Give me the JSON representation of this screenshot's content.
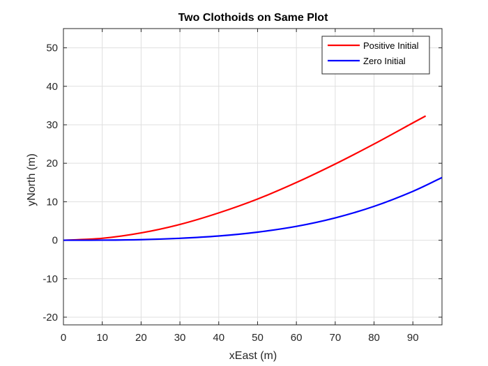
{
  "chart_data": {
    "type": "line",
    "title": "Two Clothoids on Same Plot",
    "xlabel": "xEast (m)",
    "ylabel": "yNorth (m)",
    "xlim": [
      0,
      97.5
    ],
    "ylim": [
      -22,
      55
    ],
    "xticks": [
      0,
      10,
      20,
      30,
      40,
      50,
      60,
      70,
      80,
      90
    ],
    "yticks": [
      -20,
      -10,
      0,
      10,
      20,
      30,
      40,
      50
    ],
    "grid": true,
    "legend_position": "top-right",
    "series": [
      {
        "name": "Positive Initial",
        "color": "#ff0000",
        "x": [
          0,
          10,
          20,
          30,
          40,
          50,
          60,
          70,
          80,
          90,
          93.3
        ],
        "y": [
          0,
          0.5,
          1.9,
          4.1,
          7.1,
          10.7,
          15.0,
          19.8,
          25.0,
          30.5,
          32.3
        ]
      },
      {
        "name": "Zero Initial",
        "color": "#0000ff",
        "x": [
          0,
          10,
          20,
          30,
          40,
          50,
          60,
          70,
          80,
          90,
          97.5
        ],
        "y": [
          0,
          0.02,
          0.15,
          0.5,
          1.1,
          2.1,
          3.6,
          5.8,
          8.8,
          12.7,
          16.3
        ]
      }
    ]
  }
}
